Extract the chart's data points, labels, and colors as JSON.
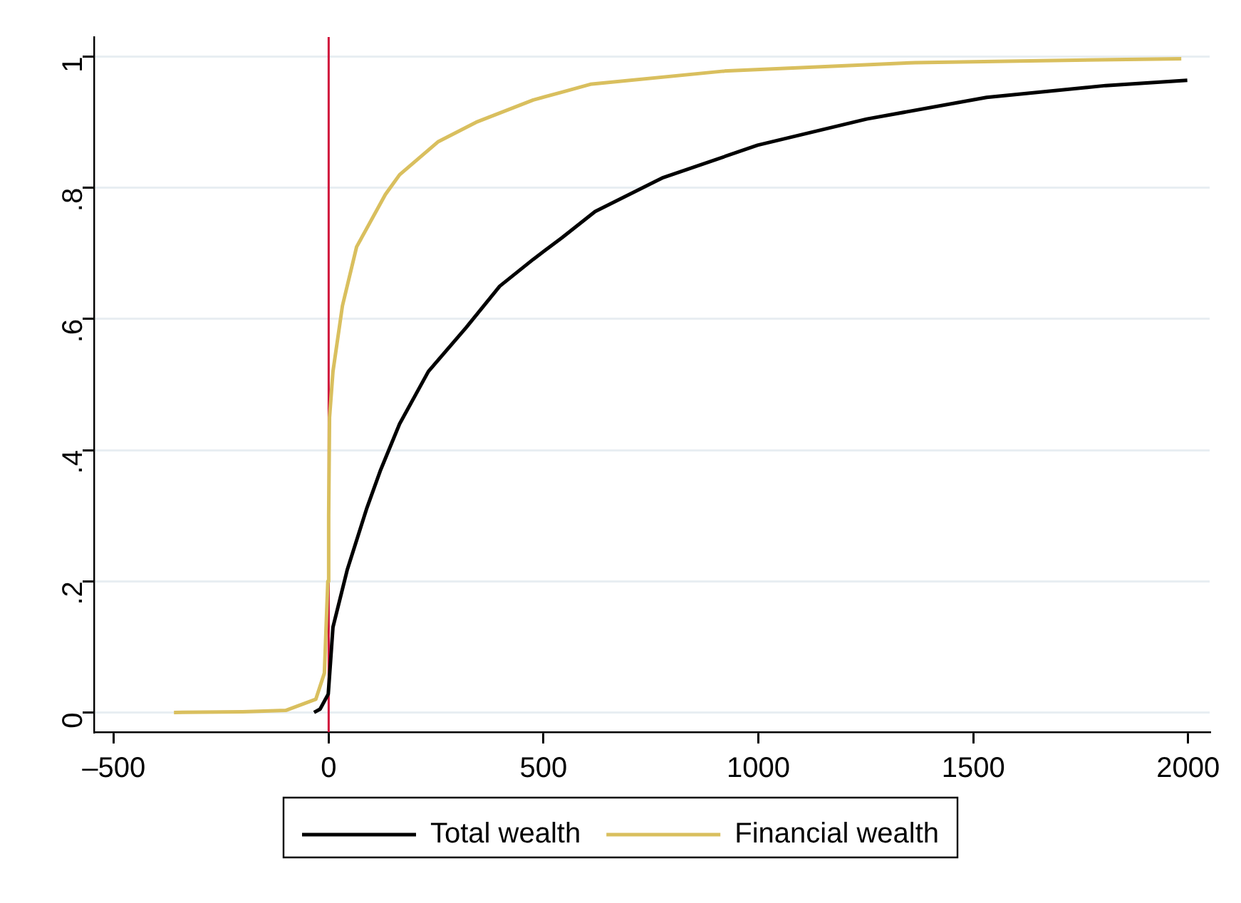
{
  "chart_data": {
    "type": "line",
    "xlim": [
      -546,
      2050
    ],
    "ylim": [
      -0.03,
      1.03
    ],
    "xticks": [
      {
        "value": -500,
        "label": "–500"
      },
      0,
      500,
      1000,
      1500,
      2000
    ],
    "yticks": [
      0,
      {
        "value": 0.2,
        "label": ".2"
      },
      {
        "value": 0.4,
        "label": ".4"
      },
      {
        "value": 0.6,
        "label": ".6"
      },
      {
        "value": 0.8,
        "label": ".8"
      },
      1
    ],
    "grid": "y",
    "legend": "bottom",
    "marker": "none",
    "line_style": "solid",
    "ref_lines": [
      {
        "axis": "x",
        "value": 0,
        "color": "#d0103a"
      }
    ],
    "series": [
      {
        "name": "Total wealth",
        "color": "#000000",
        "x": [
          -34,
          -20,
          -1,
          10,
          43,
          88,
          121,
          165,
          232,
          320,
          398,
          476,
          543,
          620,
          776,
          998,
          1252,
          1531,
          1808,
          1998
        ],
        "values": [
          0,
          0.005,
          0.028,
          0.13,
          0.217,
          0.31,
          0.37,
          0.44,
          0.52,
          0.587,
          0.65,
          0.691,
          0.724,
          0.764,
          0.815,
          0.865,
          0.905,
          0.938,
          0.956,
          0.964
        ]
      },
      {
        "name": "Financial wealth",
        "color": "#d9bf5e",
        "x": [
          -360,
          -200,
          -100,
          -30,
          -10,
          -2,
          0,
          2,
          10,
          32,
          65,
          132,
          165,
          254,
          343,
          476,
          543,
          609,
          919,
          1365,
          1984
        ],
        "values": [
          0,
          0.001,
          0.003,
          0.02,
          0.06,
          0.2,
          0.3,
          0.45,
          0.52,
          0.62,
          0.71,
          0.79,
          0.82,
          0.87,
          0.9,
          0.934,
          0.946,
          0.958,
          0.978,
          0.991,
          0.997
        ]
      }
    ]
  }
}
